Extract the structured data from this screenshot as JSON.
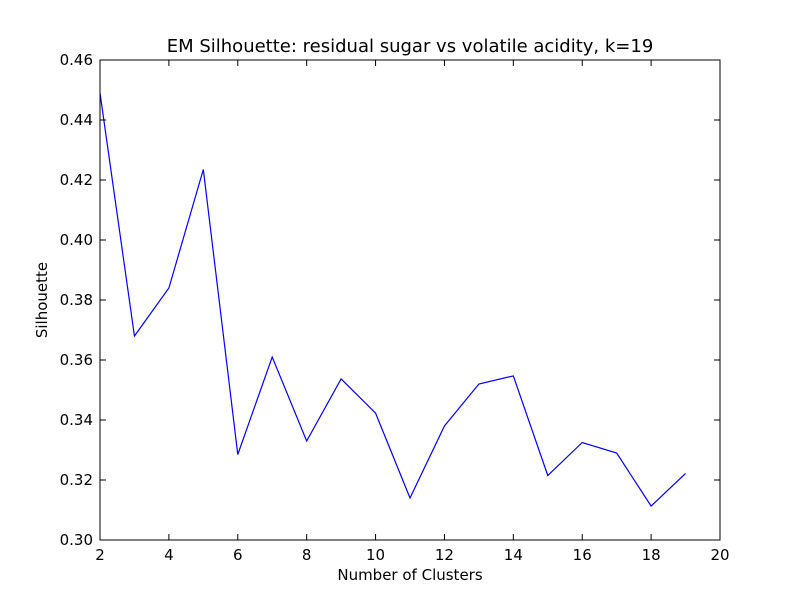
{
  "chart_data": {
    "type": "line",
    "title": "EM Silhouette: residual sugar vs volatile acidity, k=19",
    "xlabel": "Number of Clusters",
    "ylabel": "Silhouette",
    "xlim": [
      2,
      20
    ],
    "ylim": [
      0.3,
      0.46
    ],
    "xticks": [
      2,
      4,
      6,
      8,
      10,
      12,
      14,
      16,
      18,
      20
    ],
    "yticks": [
      0.3,
      0.32,
      0.34,
      0.36,
      0.38,
      0.4,
      0.42,
      0.44,
      0.46
    ],
    "xtick_labels": [
      "2",
      "4",
      "6",
      "8",
      "10",
      "12",
      "14",
      "16",
      "18",
      "20"
    ],
    "ytick_labels": [
      "0.30",
      "0.32",
      "0.34",
      "0.36",
      "0.38",
      "0.40",
      "0.42",
      "0.44",
      "0.46"
    ],
    "grid": false,
    "line_color": "#0000ff",
    "series": [
      {
        "x": [
          2,
          3,
          4,
          5,
          6,
          7,
          8,
          9,
          10,
          11,
          12,
          13,
          14,
          15,
          16,
          17,
          18,
          19
        ],
        "values": [
          0.449,
          0.368,
          0.384,
          0.4235,
          0.3285,
          0.361,
          0.333,
          0.3537,
          0.3423,
          0.314,
          0.338,
          0.352,
          0.3547,
          0.3215,
          0.3325,
          0.329,
          0.3113,
          0.3222
        ]
      }
    ]
  }
}
